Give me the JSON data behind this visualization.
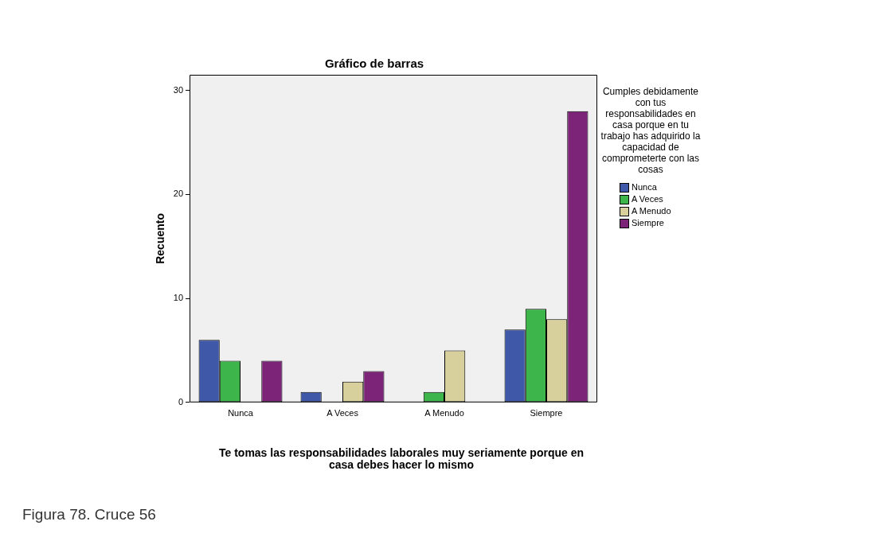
{
  "chart_data": {
    "type": "bar",
    "title": "Gráfico de barras",
    "xlabel": "Te tomas las responsabilidades laborales muy seriamente porque en casa debes hacer lo mismo",
    "ylabel": "Recuento",
    "legend_title": "Cumples debidamente con tus responsabilidades en casa porque en tu trabajo has adquirido la capacidad de comprometerte con las cosas",
    "categories": [
      "Nunca",
      "A Veces",
      "A Menudo",
      "Siempre"
    ],
    "series": [
      {
        "name": "Nunca",
        "color": "#3f58a8",
        "values": [
          6,
          1,
          null,
          7
        ]
      },
      {
        "name": "A Veces",
        "color": "#3db54a",
        "values": [
          4,
          null,
          1,
          9
        ]
      },
      {
        "name": "A Menudo",
        "color": "#d8d09c",
        "values": [
          null,
          2,
          5,
          8
        ]
      },
      {
        "name": "Siempre",
        "color": "#7c2578",
        "values": [
          4,
          3,
          null,
          28
        ]
      }
    ],
    "ylim": [
      0,
      31.5
    ],
    "yticks": [
      0,
      10,
      20,
      30
    ],
    "grid": false,
    "legend": "right",
    "annotations": [
      "Figura 78. Cruce 56"
    ]
  }
}
